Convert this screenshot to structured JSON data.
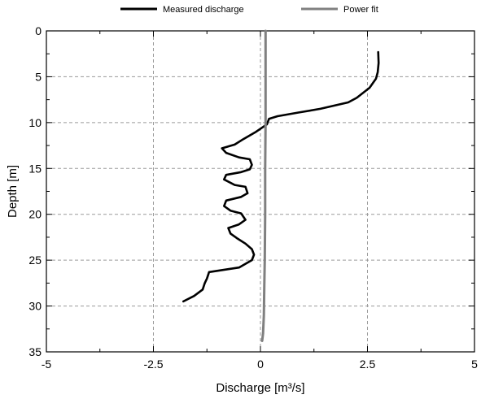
{
  "chart_data": {
    "type": "line",
    "title": "",
    "xlabel": "Discharge [m³/s]",
    "ylabel": "Depth [m]",
    "xlim": [
      -5,
      5
    ],
    "ylim": [
      0,
      35
    ],
    "y_inverted": true,
    "x_ticks": [
      -5,
      -2.5,
      0,
      2.5,
      5
    ],
    "y_ticks": [
      0,
      5,
      10,
      15,
      20,
      25,
      30,
      35
    ],
    "grid": true,
    "legend_position": "top",
    "series": [
      {
        "name": "Measured discharge",
        "color": "#000000",
        "points": [
          [
            2.75,
            2.3
          ],
          [
            2.76,
            3.5
          ],
          [
            2.74,
            4.5
          ],
          [
            2.7,
            5.2
          ],
          [
            2.55,
            6.2
          ],
          [
            2.25,
            7.3
          ],
          [
            2.05,
            7.8
          ],
          [
            1.4,
            8.5
          ],
          [
            0.9,
            8.9
          ],
          [
            0.4,
            9.3
          ],
          [
            0.2,
            9.6
          ],
          [
            0.15,
            10.2
          ],
          [
            -0.1,
            11.0
          ],
          [
            -0.4,
            11.8
          ],
          [
            -0.6,
            12.4
          ],
          [
            -0.9,
            12.8
          ],
          [
            -0.8,
            13.3
          ],
          [
            -0.5,
            13.8
          ],
          [
            -0.25,
            14.0
          ],
          [
            -0.2,
            14.6
          ],
          [
            -0.25,
            15.1
          ],
          [
            -0.45,
            15.4
          ],
          [
            -0.8,
            15.7
          ],
          [
            -0.85,
            16.2
          ],
          [
            -0.6,
            16.8
          ],
          [
            -0.35,
            17.0
          ],
          [
            -0.3,
            17.7
          ],
          [
            -0.45,
            18.1
          ],
          [
            -0.8,
            18.5
          ],
          [
            -0.85,
            19.1
          ],
          [
            -0.7,
            19.6
          ],
          [
            -0.45,
            19.9
          ],
          [
            -0.35,
            20.6
          ],
          [
            -0.5,
            21.1
          ],
          [
            -0.75,
            21.5
          ],
          [
            -0.7,
            22.1
          ],
          [
            -0.55,
            22.6
          ],
          [
            -0.35,
            23.2
          ],
          [
            -0.2,
            23.8
          ],
          [
            -0.15,
            24.4
          ],
          [
            -0.2,
            25.0
          ],
          [
            -0.5,
            25.8
          ],
          [
            -1.2,
            26.3
          ],
          [
            -1.25,
            27.0
          ],
          [
            -1.3,
            27.5
          ],
          [
            -1.35,
            28.2
          ],
          [
            -1.55,
            28.9
          ],
          [
            -1.8,
            29.5
          ]
        ]
      },
      {
        "name": "Power fit",
        "color": "#808080",
        "points": [
          [
            0.12,
            0.0
          ],
          [
            0.12,
            5.0
          ],
          [
            0.12,
            10.0
          ],
          [
            0.11,
            15.0
          ],
          [
            0.11,
            20.0
          ],
          [
            0.1,
            25.0
          ],
          [
            0.09,
            28.0
          ],
          [
            0.08,
            31.0
          ],
          [
            0.06,
            33.0
          ],
          [
            0.04,
            33.8
          ]
        ]
      }
    ]
  }
}
